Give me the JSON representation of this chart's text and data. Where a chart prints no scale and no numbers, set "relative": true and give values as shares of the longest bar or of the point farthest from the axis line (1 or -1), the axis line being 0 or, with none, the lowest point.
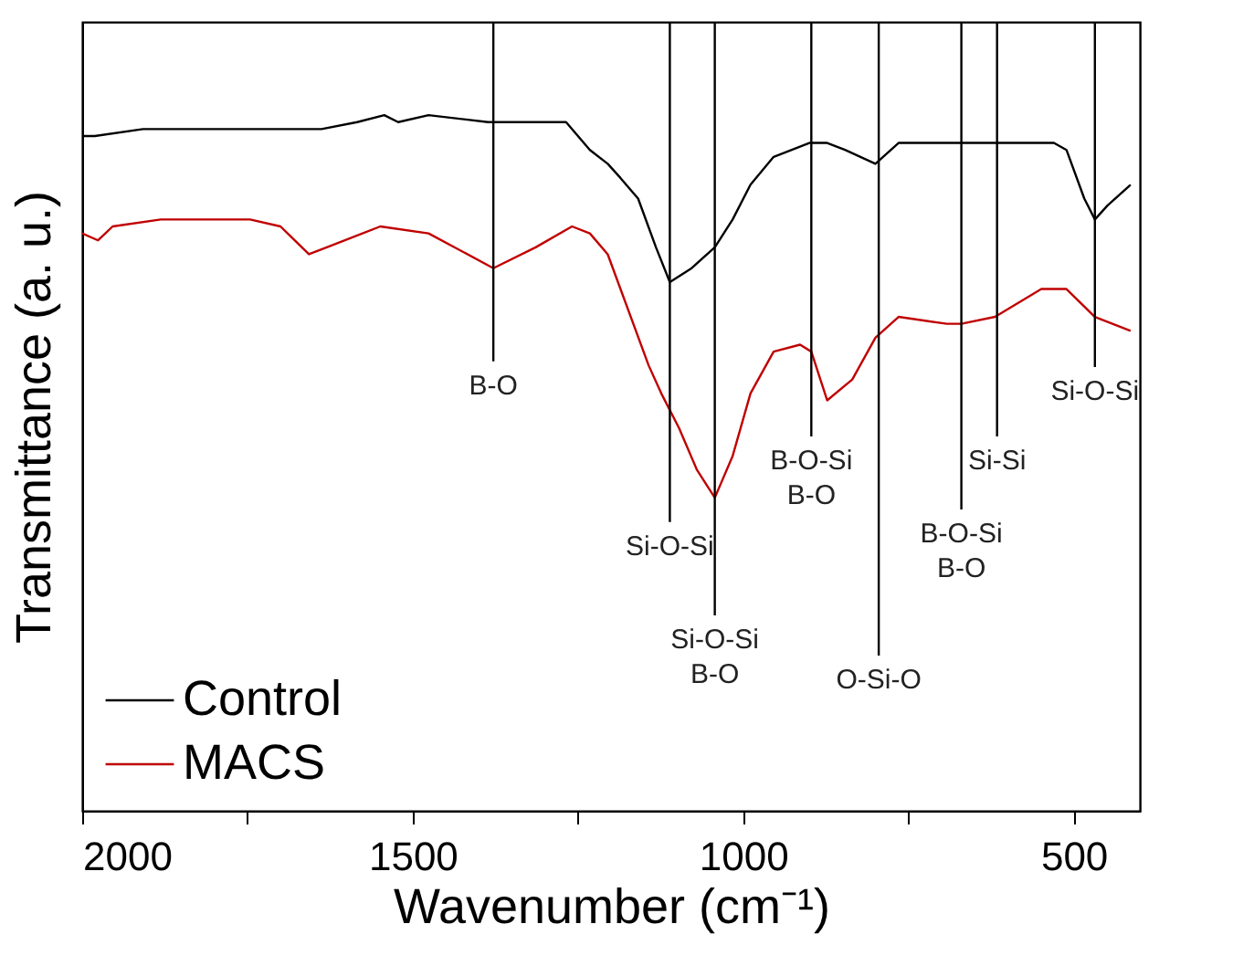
{
  "chart_data": {
    "type": "line",
    "relative": true,
    "xlabel": "Wavenumber (cm⁻¹)",
    "ylabel": "Transmittance (a. u.)",
    "xlim": [
      2000,
      400
    ],
    "xticks": [
      2000,
      {
        "value": 1750,
        "label": null
      },
      1500,
      {
        "value": 1250,
        "label": null
      },
      1000,
      {
        "value": 750,
        "label": null
      },
      500
    ],
    "grid": false,
    "legend": "bottom left",
    "marker": "none",
    "line_style": "solid",
    "series": [
      {
        "name": "Control",
        "color": "#000000",
        "x": [
          2000,
          1981,
          1908,
          1746,
          1638,
          1584,
          1543,
          1522,
          1476,
          1386,
          1295,
          1268,
          1232,
          1205,
          1186,
          1159,
          1132,
          1111,
          1078,
          1043,
          1016,
          989,
          954,
          900,
          873,
          846,
          800,
          765,
          727,
          670,
          530,
          511,
          484,
          468,
          449,
          414
        ],
        "values": [
          0.97,
          0.97,
          0.98,
          0.98,
          0.98,
          0.99,
          1.0,
          0.99,
          1.0,
          0.99,
          0.99,
          0.99,
          0.95,
          0.93,
          0.91,
          0.88,
          0.81,
          0.76,
          0.78,
          0.81,
          0.85,
          0.9,
          0.94,
          0.96,
          0.96,
          0.95,
          0.93,
          0.96,
          0.96,
          0.96,
          0.96,
          0.95,
          0.88,
          0.85,
          0.87,
          0.9
        ]
      },
      {
        "name": "MACS",
        "color": "#c00000",
        "x": [
          2000,
          1976,
          1954,
          1881,
          1746,
          1700,
          1657,
          1630,
          1549,
          1476,
          1378,
          1314,
          1259,
          1232,
          1205,
          1143,
          1124,
          1097,
          1070,
          1043,
          1016,
          989,
          954,
          914,
          897,
          873,
          835,
          800,
          765,
          692,
          670,
          619,
          549,
          511,
          468,
          414
        ],
        "values": [
          0.83,
          0.82,
          0.84,
          0.85,
          0.85,
          0.84,
          0.8,
          0.81,
          0.84,
          0.83,
          0.78,
          0.81,
          0.84,
          0.83,
          0.8,
          0.64,
          0.6,
          0.55,
          0.49,
          0.45,
          0.51,
          0.6,
          0.66,
          0.67,
          0.66,
          0.59,
          0.62,
          0.68,
          0.71,
          0.7,
          0.7,
          0.71,
          0.75,
          0.75,
          0.71,
          0.69
        ]
      }
    ],
    "ref_lines": [
      {
        "axis": "x",
        "value": 1378,
        "label": "B-O"
      },
      {
        "axis": "x",
        "value": 1111,
        "label": "Si-O-Si"
      },
      {
        "axis": "x",
        "value": 1043,
        "label": "Si-O-Si\nB-O"
      },
      {
        "axis": "x",
        "value": 897,
        "label": "B-O-Si\nB-O"
      },
      {
        "axis": "x",
        "value": 795,
        "label": "O-Si-O"
      },
      {
        "axis": "x",
        "value": 670,
        "label": "B-O-Si\nB-O"
      },
      {
        "axis": "x",
        "value": 616,
        "label": "Si-Si"
      },
      {
        "axis": "x",
        "value": 468,
        "label": "Si-O-Si"
      }
    ]
  }
}
